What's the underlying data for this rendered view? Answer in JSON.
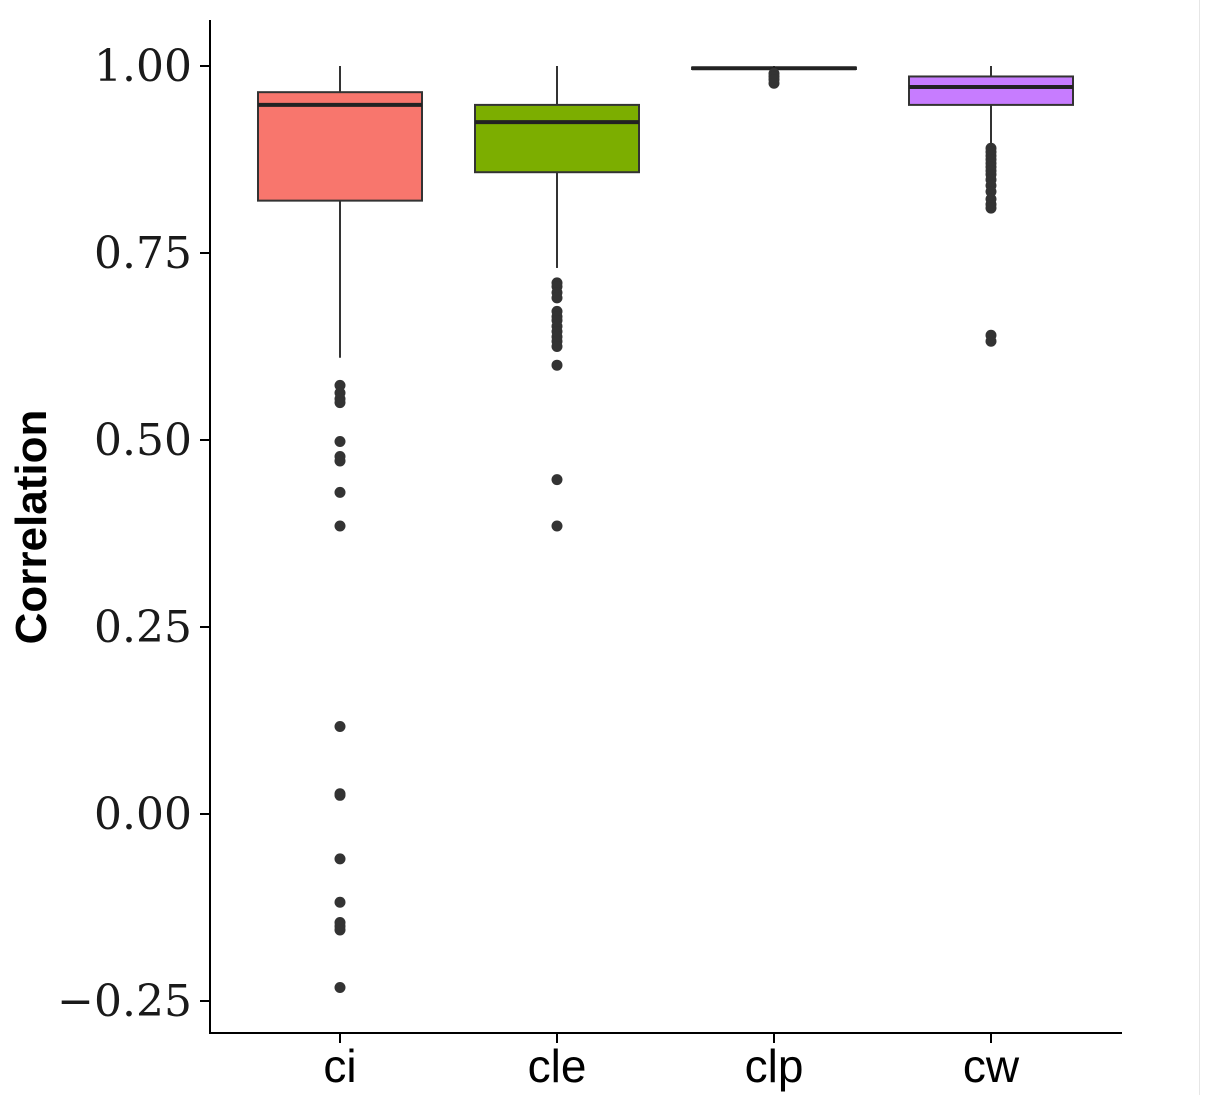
{
  "chart_data": {
    "type": "box",
    "ylabel": "Correlation",
    "xlabel": "",
    "ylim": [
      -0.31,
      1.06
    ],
    "y_ticks": [
      1.0,
      0.75,
      0.5,
      0.25,
      0.0,
      -0.25
    ],
    "y_tick_labels": [
      "1.00",
      "0.75",
      "0.50",
      "0.25",
      "0.00",
      "−0.25"
    ],
    "grid": false,
    "legend": "none",
    "categories": [
      "ci",
      "cle",
      "clp",
      "cw"
    ],
    "boxes": [
      {
        "name": "ci",
        "color": "#F8766D",
        "whisker_low": 0.61,
        "q1": 0.82,
        "median": 0.948,
        "q3": 0.965,
        "whisker_high": 1.0,
        "outliers": [
          0.573,
          0.563,
          0.555,
          0.55,
          0.498,
          0.478,
          0.472,
          0.43,
          0.385,
          0.117,
          0.027,
          0.025,
          -0.06,
          -0.118,
          -0.145,
          -0.15,
          -0.155,
          -0.232
        ]
      },
      {
        "name": "cle",
        "color": "#7CAE00",
        "whisker_low": 0.73,
        "q1": 0.858,
        "median": 0.925,
        "q3": 0.948,
        "whisker_high": 1.0,
        "outliers": [
          0.71,
          0.705,
          0.697,
          0.69,
          0.672,
          0.665,
          0.66,
          0.652,
          0.645,
          0.638,
          0.632,
          0.625,
          0.6,
          0.447,
          0.385
        ]
      },
      {
        "name": "clp",
        "color": "#00BFC4",
        "whisker_low": 0.995,
        "q1": 0.996,
        "median": 0.997,
        "q3": 0.998,
        "whisker_high": 1.0,
        "outliers": [
          0.99,
          0.986,
          0.982,
          0.977
        ]
      },
      {
        "name": "cw",
        "color": "#C77CFF",
        "whisker_low": 0.895,
        "q1": 0.948,
        "median": 0.972,
        "q3": 0.986,
        "whisker_high": 1.0,
        "outliers": [
          0.89,
          0.885,
          0.88,
          0.875,
          0.87,
          0.865,
          0.86,
          0.855,
          0.848,
          0.84,
          0.832,
          0.822,
          0.815,
          0.81,
          0.64,
          0.632
        ]
      }
    ]
  }
}
